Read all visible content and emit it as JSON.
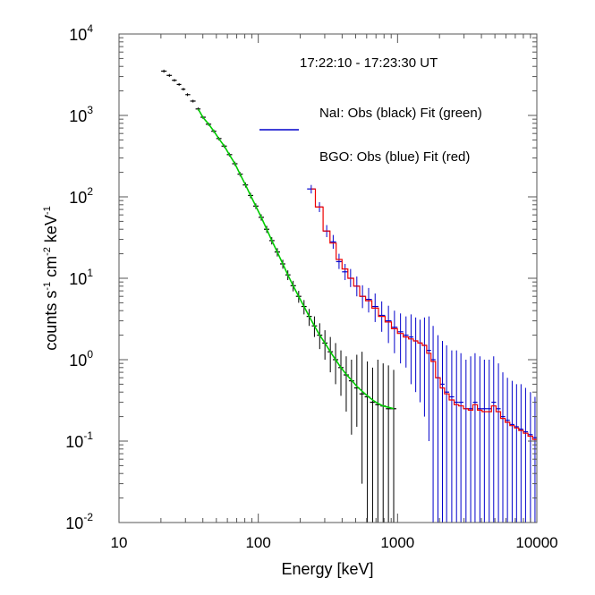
{
  "chart_data": {
    "type": "line",
    "title": "17:22:10 - 17:23:30 UT",
    "xlabel": "Energy [keV]",
    "ylabel": {
      "base": "counts s",
      "p1": "-1",
      "mid": " cm",
      "p2": "-2",
      "unit": " keV",
      "p3": "-1"
    },
    "xscale": "log",
    "yscale": "log",
    "xlim": [
      10,
      10000
    ],
    "ylim": [
      0.01,
      10000
    ],
    "x_ticks": [
      {
        "value": 10,
        "label": "10"
      },
      {
        "value": 100,
        "label": "100"
      },
      {
        "value": 1000,
        "label": "1000"
      },
      {
        "value": 10000,
        "label": "10000"
      }
    ],
    "y_ticks": [
      {
        "value": 0.01,
        "base": "10",
        "exp": "-2"
      },
      {
        "value": 0.1,
        "base": "10",
        "exp": "-1"
      },
      {
        "value": 1,
        "base": "10",
        "exp": "0"
      },
      {
        "value": 10,
        "base": "10",
        "exp": "1"
      },
      {
        "value": 100,
        "base": "10",
        "exp": "2"
      },
      {
        "value": 1000,
        "base": "10",
        "exp": "3"
      },
      {
        "value": 10000,
        "base": "10",
        "exp": "4"
      }
    ],
    "legend": [
      {
        "text": "NaI: Obs (black) Fit (green)"
      },
      {
        "text": "BGO: Obs (blue) Fit (red)"
      }
    ],
    "colors": {
      "nai_obs": "#000000",
      "nai_fit": "#00cc00",
      "bgo_obs": "#0000cc",
      "bgo_fit": "#ee0000"
    },
    "series": [
      {
        "key": "nai_obs",
        "style": "errorbar",
        "x": [
          21,
          23,
          25,
          27,
          29,
          31,
          34,
          37,
          40,
          44,
          48,
          52,
          57,
          62,
          68,
          74,
          81,
          88,
          96,
          105,
          115,
          125,
          137,
          150,
          163,
          178,
          195,
          213,
          232,
          253,
          276,
          301,
          329,
          359,
          392,
          428,
          467,
          510,
          556,
          607,
          662,
          722,
          788,
          860,
          938
        ],
        "y": [
          3500,
          3100,
          2700,
          2400,
          2100,
          1800,
          1500,
          1200,
          950,
          780,
          640,
          520,
          420,
          330,
          255,
          190,
          140,
          104,
          77,
          56,
          40,
          29,
          21,
          15,
          11,
          8.1,
          6.0,
          4.5,
          3.4,
          2.6,
          2.0,
          1.6,
          1.25,
          1.0,
          0.8,
          0.65,
          0.55,
          0.45,
          0.38,
          0.35,
          0.3,
          0.28,
          0.27,
          0.25,
          0.25
        ],
        "err_lo": [
          3350,
          2970,
          2600,
          2310,
          2020,
          1730,
          1440,
          1150,
          910,
          745,
          610,
          495,
          400,
          312,
          240,
          178,
          130,
          96,
          71,
          51,
          36,
          26,
          18.5,
          13.1,
          9.5,
          6.9,
          5.0,
          3.6,
          2.6,
          1.9,
          1.35,
          1.0,
          0.7,
          0.5,
          0.36,
          0.23,
          0.12,
          0.15,
          0.03,
          0.005,
          0.01,
          0.01,
          0.005,
          0.005,
          0.005
        ],
        "err_hi": [
          3650,
          3230,
          2800,
          2490,
          2180,
          1870,
          1560,
          1250,
          990,
          815,
          670,
          545,
          440,
          348,
          270,
          202,
          150,
          112,
          83,
          61,
          44,
          32,
          23.5,
          16.9,
          12.5,
          9.3,
          7.0,
          5.4,
          4.2,
          3.4,
          2.8,
          2.3,
          1.9,
          1.6,
          1.3,
          1.1,
          1.0,
          1.15,
          1.25,
          0.95,
          0.8,
          1.0,
          0.9,
          0.85,
          0.75
        ]
      },
      {
        "key": "nai_fit",
        "style": "line",
        "x": [
          37,
          40,
          44,
          48,
          52,
          57,
          62,
          68,
          74,
          81,
          88,
          96,
          105,
          115,
          125,
          137,
          150,
          163,
          178,
          195,
          213,
          232,
          253,
          276,
          301,
          329,
          359,
          392,
          428,
          467,
          510,
          556,
          607,
          662,
          722,
          788,
          860,
          938
        ],
        "y": [
          1200,
          950,
          780,
          640,
          520,
          420,
          330,
          255,
          190,
          140,
          104,
          77,
          56,
          40,
          29,
          21,
          15,
          11,
          8.1,
          6.0,
          4.5,
          3.4,
          2.6,
          2.0,
          1.6,
          1.25,
          1.0,
          0.8,
          0.66,
          0.56,
          0.47,
          0.41,
          0.36,
          0.32,
          0.29,
          0.27,
          0.26,
          0.25
        ]
      },
      {
        "key": "bgo_obs",
        "style": "errorbar",
        "x": [
          240,
          275,
          310,
          345,
          380,
          420,
          460,
          510,
          560,
          620,
          690,
          770,
          860,
          950,
          1050,
          1150,
          1250,
          1350,
          1450,
          1560,
          1680,
          1800,
          1950,
          2100,
          2250,
          2450,
          2650,
          2850,
          3100,
          3350,
          3600,
          3900,
          4200,
          4550,
          4900,
          5300,
          5700,
          6150,
          6650,
          7150,
          7700,
          8300,
          9000,
          9700
        ],
        "y": [
          125,
          75,
          38,
          28,
          16,
          12,
          10,
          8,
          6,
          5.5,
          4.5,
          3.5,
          3.0,
          2.5,
          2.2,
          2.0,
          1.9,
          1.7,
          1.6,
          1.5,
          1.3,
          1.0,
          0.6,
          0.5,
          0.4,
          0.35,
          0.3,
          0.3,
          0.25,
          0.25,
          0.3,
          0.25,
          0.25,
          0.25,
          0.3,
          0.25,
          0.2,
          0.18,
          0.16,
          0.15,
          0.14,
          0.13,
          0.12,
          0.11
        ],
        "err_lo": [
          110,
          65,
          32,
          23,
          13,
          9.5,
          7.8,
          6.0,
          4.3,
          3.8,
          2.9,
          2.2,
          1.6,
          1.2,
          0.9,
          0.8,
          0.5,
          0.4,
          0.3,
          0.2,
          0.1,
          0.005,
          0.005,
          0.005,
          0.005,
          0.005,
          0.005,
          0.005,
          0.005,
          0.005,
          0.005,
          0.005,
          0.005,
          0.005,
          0.005,
          0.005,
          0.005,
          0.005,
          0.005,
          0.005,
          0.005,
          0.005,
          0.005,
          0.005
        ],
        "err_hi": [
          140,
          86,
          45,
          34,
          20,
          15,
          13,
          10.5,
          8.2,
          7.6,
          6.5,
          5.2,
          4.6,
          4.0,
          3.7,
          3.4,
          3.6,
          3.3,
          3.1,
          3.3,
          3.4,
          2.6,
          2.0,
          1.7,
          1.5,
          1.3,
          1.3,
          1.2,
          1.0,
          1.1,
          1.2,
          1.1,
          1.0,
          1.0,
          1.1,
          0.9,
          0.7,
          0.6,
          0.55,
          0.5,
          0.5,
          0.45,
          0.4,
          0.35
        ]
      },
      {
        "key": "bgo_fit",
        "style": "step",
        "x": [
          240,
          275,
          310,
          345,
          380,
          420,
          460,
          510,
          560,
          620,
          690,
          770,
          860,
          950,
          1050,
          1150,
          1250,
          1350,
          1450,
          1560,
          1680,
          1800,
          1950,
          2100,
          2250,
          2450,
          2650,
          2850,
          3100,
          3350,
          3600,
          3900,
          4200,
          4550,
          4900,
          5300,
          5700,
          6150,
          6650,
          7150,
          7700,
          8300,
          9000,
          9700
        ],
        "y": [
          125,
          75,
          38,
          27,
          17,
          13,
          10,
          8,
          6,
          5.3,
          4.3,
          3.4,
          2.9,
          2.4,
          2.1,
          1.9,
          1.8,
          1.7,
          1.6,
          1.5,
          1.2,
          0.95,
          0.6,
          0.45,
          0.38,
          0.32,
          0.28,
          0.27,
          0.25,
          0.24,
          0.28,
          0.24,
          0.23,
          0.23,
          0.27,
          0.23,
          0.19,
          0.17,
          0.155,
          0.145,
          0.135,
          0.125,
          0.115,
          0.105
        ]
      }
    ]
  }
}
